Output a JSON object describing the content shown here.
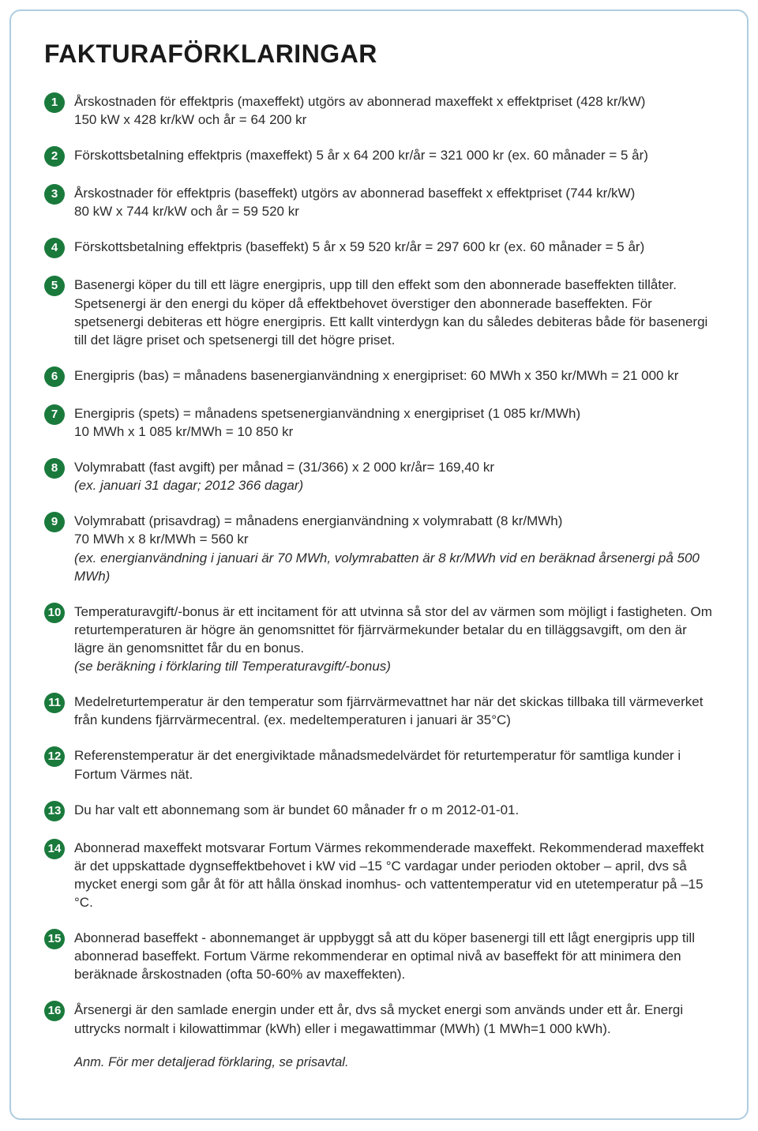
{
  "title": "FAKTURAFÖRKLARINGAR",
  "colors": {
    "badge_bg": "#1a7a3c",
    "badge_fg": "#ffffff",
    "border": "#afcde0",
    "text": "#2b2b2b"
  },
  "items": [
    {
      "num": "1",
      "lines": [
        "Årskostnaden för effektpris (maxeffekt) utgörs av abonnerad maxeffekt x effektpriset (428 kr/kW)",
        "150 kW x 428 kr/kW och år = 64 200 kr"
      ],
      "notes": []
    },
    {
      "num": "2",
      "lines": [
        "Förskottsbetalning effektpris (maxeffekt) 5 år x 64 200 kr/år = 321 000 kr (ex. 60 månader = 5 år)"
      ],
      "notes": []
    },
    {
      "num": "3",
      "lines": [
        "Årskostnader för effektpris (baseffekt) utgörs av abonnerad baseffekt x effektpriset (744 kr/kW)",
        "80 kW x 744 kr/kW och år = 59 520 kr"
      ],
      "notes": []
    },
    {
      "num": "4",
      "lines": [
        "Förskottsbetalning effektpris (baseffekt) 5 år x 59 520 kr/år = 297 600 kr (ex. 60 månader = 5 år)"
      ],
      "notes": []
    },
    {
      "num": "5",
      "lines": [
        "Basenergi köper du till ett lägre energipris, upp till den effekt som den abonnerade baseffekten tillåter. Spetsenergi är den energi du köper då effektbehovet överstiger den abonnerade baseffekten. För spetsenergi debiteras ett högre energipris. Ett kallt vinterdygn kan du således debiteras både för basenergi till det lägre priset och spetsenergi till det högre priset."
      ],
      "notes": []
    },
    {
      "num": "6",
      "lines": [
        "Energipris (bas) = månadens basenergianvändning x energipriset: 60 MWh x 350 kr/MWh = 21 000 kr"
      ],
      "notes": []
    },
    {
      "num": "7",
      "lines": [
        "Energipris (spets) = månadens spetsenergianvändning x energipriset (1 085 kr/MWh)",
        "10 MWh x 1 085 kr/MWh = 10 850 kr"
      ],
      "notes": []
    },
    {
      "num": "8",
      "lines": [
        "Volymrabatt (fast avgift) per månad = (31/366) x 2 000 kr/år= 169,40 kr"
      ],
      "notes": [
        "(ex. januari 31 dagar; 2012 366 dagar)"
      ]
    },
    {
      "num": "9",
      "lines": [
        "Volymrabatt (prisavdrag) = månadens energianvändning x volymrabatt (8 kr/MWh)",
        "70 MWh x 8 kr/MWh = 560 kr"
      ],
      "notes": [
        "(ex. energianvändning i januari är 70 MWh, volymrabatten är 8 kr/MWh vid en beräknad årsenergi på 500 MWh)"
      ]
    },
    {
      "num": "10",
      "lines": [
        "Temperaturavgift/-bonus är ett incitament för att utvinna så stor del av värmen som möjligt i fastigheten. Om returtemperaturen är högre än genomsnittet för fjärrvärmekunder betalar du en tilläggsavgift, om den är lägre än genomsnittet får du en bonus."
      ],
      "notes": [
        "(se beräkning i förklaring till Temperaturavgift/-bonus)"
      ]
    },
    {
      "num": "11",
      "lines": [
        "Medelreturtemperatur är den temperatur som fjärrvärmevattnet har när det skickas tillbaka till värmeverket från kundens fjärrvärmecentral. (ex. medeltemperaturen i januari är 35°C)"
      ],
      "notes": []
    },
    {
      "num": "12",
      "lines": [
        "Referenstemperatur är det energiviktade månadsmedelvärdet för returtemperatur för samtliga kunder i Fortum Värmes nät."
      ],
      "notes": []
    },
    {
      "num": "13",
      "lines": [
        "Du har valt ett abonnemang som är bundet 60 månader fr o m 2012-01-01."
      ],
      "notes": []
    },
    {
      "num": "14",
      "lines": [
        "Abonnerad maxeffekt motsvarar Fortum Värmes rekommenderade maxeffekt. Rekommenderad maxeffekt är det uppskattade dygnseffektbehovet i kW vid –15 °C vardagar under perioden oktober – april, dvs så mycket energi som går åt för att hålla önskad inomhus- och vattentemperatur vid en utetemperatur på –15 °C."
      ],
      "notes": []
    },
    {
      "num": "15",
      "lines": [
        "Abonnerad baseffekt - abonnemanget är uppbyggt så att du köper basenergi till ett lågt energipris upp till abonnerad baseffekt. Fortum Värme rekommenderar en optimal nivå av baseffekt för att minimera den beräknade årskostnaden (ofta 50-60% av maxeffekten)."
      ],
      "notes": []
    },
    {
      "num": "16",
      "lines": [
        "Årsenergi är den samlade energin under ett år, dvs så mycket energi som används under ett år. Energi uttrycks normalt i kilowattimmar (kWh) eller i megawattimmar (MWh) (1 MWh=1 000 kWh)."
      ],
      "notes": []
    }
  ],
  "footer": "Anm. För mer detaljerad förklaring, se prisavtal."
}
